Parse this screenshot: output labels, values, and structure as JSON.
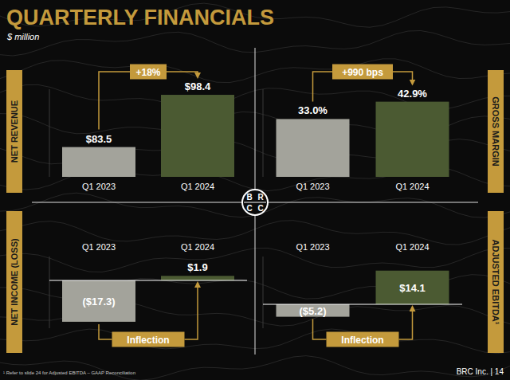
{
  "title": "QUARTERLY FINANCIALS",
  "subtitle": "$ million",
  "footnote": "¹ Refer to slide 24 for Adjusted EBITDA – GAAP Reconciliation",
  "page_label": "BRC Inc. | 14",
  "logo": [
    "B",
    "R",
    "C",
    "C"
  ],
  "chart_data": [
    {
      "type": "bar",
      "title": "NET REVENUE",
      "categories": [
        "Q1 2023",
        "Q1 2024"
      ],
      "values": [
        83.5,
        98.4
      ],
      "value_labels": [
        "$83.5",
        "$98.4"
      ],
      "colors": [
        "#a3a39b",
        "#4b5a32"
      ],
      "ylim": [
        75,
        100
      ],
      "data_labels": true,
      "tick_labels": false,
      "grid": false,
      "annotation": "+18%"
    },
    {
      "type": "bar",
      "title": "GROSS MARGIN",
      "categories": [
        "Q1 2023",
        "Q1 2024"
      ],
      "values": [
        33.0,
        42.9
      ],
      "value_labels": [
        "33.0%",
        "42.9%"
      ],
      "colors": [
        "#a3a39b",
        "#4b5a32"
      ],
      "ylim": [
        0,
        50
      ],
      "data_labels": true,
      "tick_labels": false,
      "grid": false,
      "annotation": "+990 bps"
    },
    {
      "type": "bar",
      "title": "NET INCOME (LOSS)",
      "categories": [
        "Q1 2023",
        "Q1 2024"
      ],
      "values": [
        -17.3,
        1.9
      ],
      "value_labels": [
        "($17.3)",
        "$1.9"
      ],
      "colors": [
        "#a3a39b",
        "#4b5a32"
      ],
      "ylim": [
        -20,
        10
      ],
      "data_labels": true,
      "tick_labels": false,
      "grid": false,
      "annotation": "Inflection"
    },
    {
      "type": "bar",
      "title": "ADJUSTED EBITDA¹",
      "categories": [
        "Q1 2023",
        "Q1 2024"
      ],
      "values": [
        -5.2,
        14.1
      ],
      "value_labels": [
        "($5.2)",
        "$14.1"
      ],
      "colors": [
        "#a3a39b",
        "#4b5a32"
      ],
      "ylim": [
        -10,
        20
      ],
      "data_labels": true,
      "tick_labels": false,
      "grid": false,
      "annotation": "Inflection"
    }
  ]
}
